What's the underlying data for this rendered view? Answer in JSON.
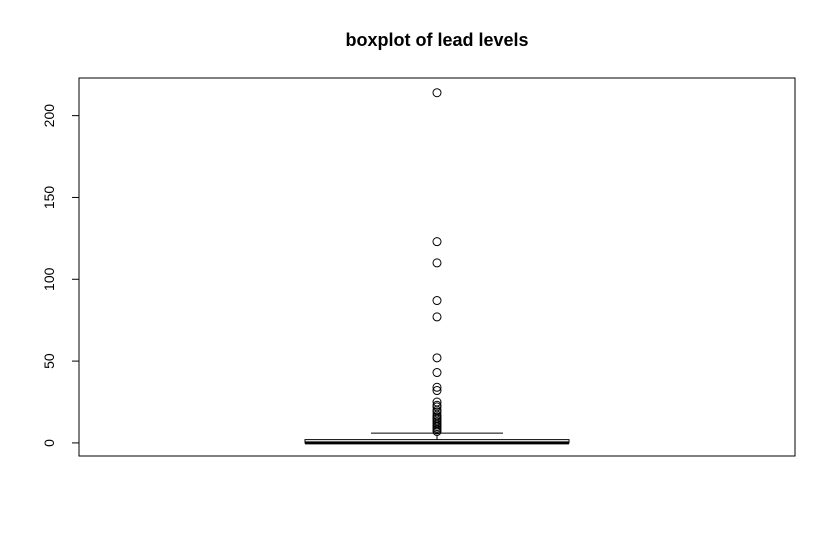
{
  "chart_data": {
    "type": "box",
    "title": "boxplot of lead levels",
    "xlabel": "",
    "ylabel": "",
    "ylim": [
      -8,
      223
    ],
    "yticks": [
      0,
      50,
      100,
      150,
      200
    ],
    "grid": false,
    "legend": "none",
    "box": {
      "whisker_low": 0,
      "q1": 0,
      "median": 0,
      "q3": 2,
      "whisker_high": 6
    },
    "outliers": [
      214,
      123,
      110,
      87,
      77,
      52,
      43,
      34,
      32,
      25,
      23,
      22,
      20,
      19,
      17,
      16,
      15,
      14,
      13,
      12,
      11,
      10,
      9,
      8,
      7
    ]
  }
}
